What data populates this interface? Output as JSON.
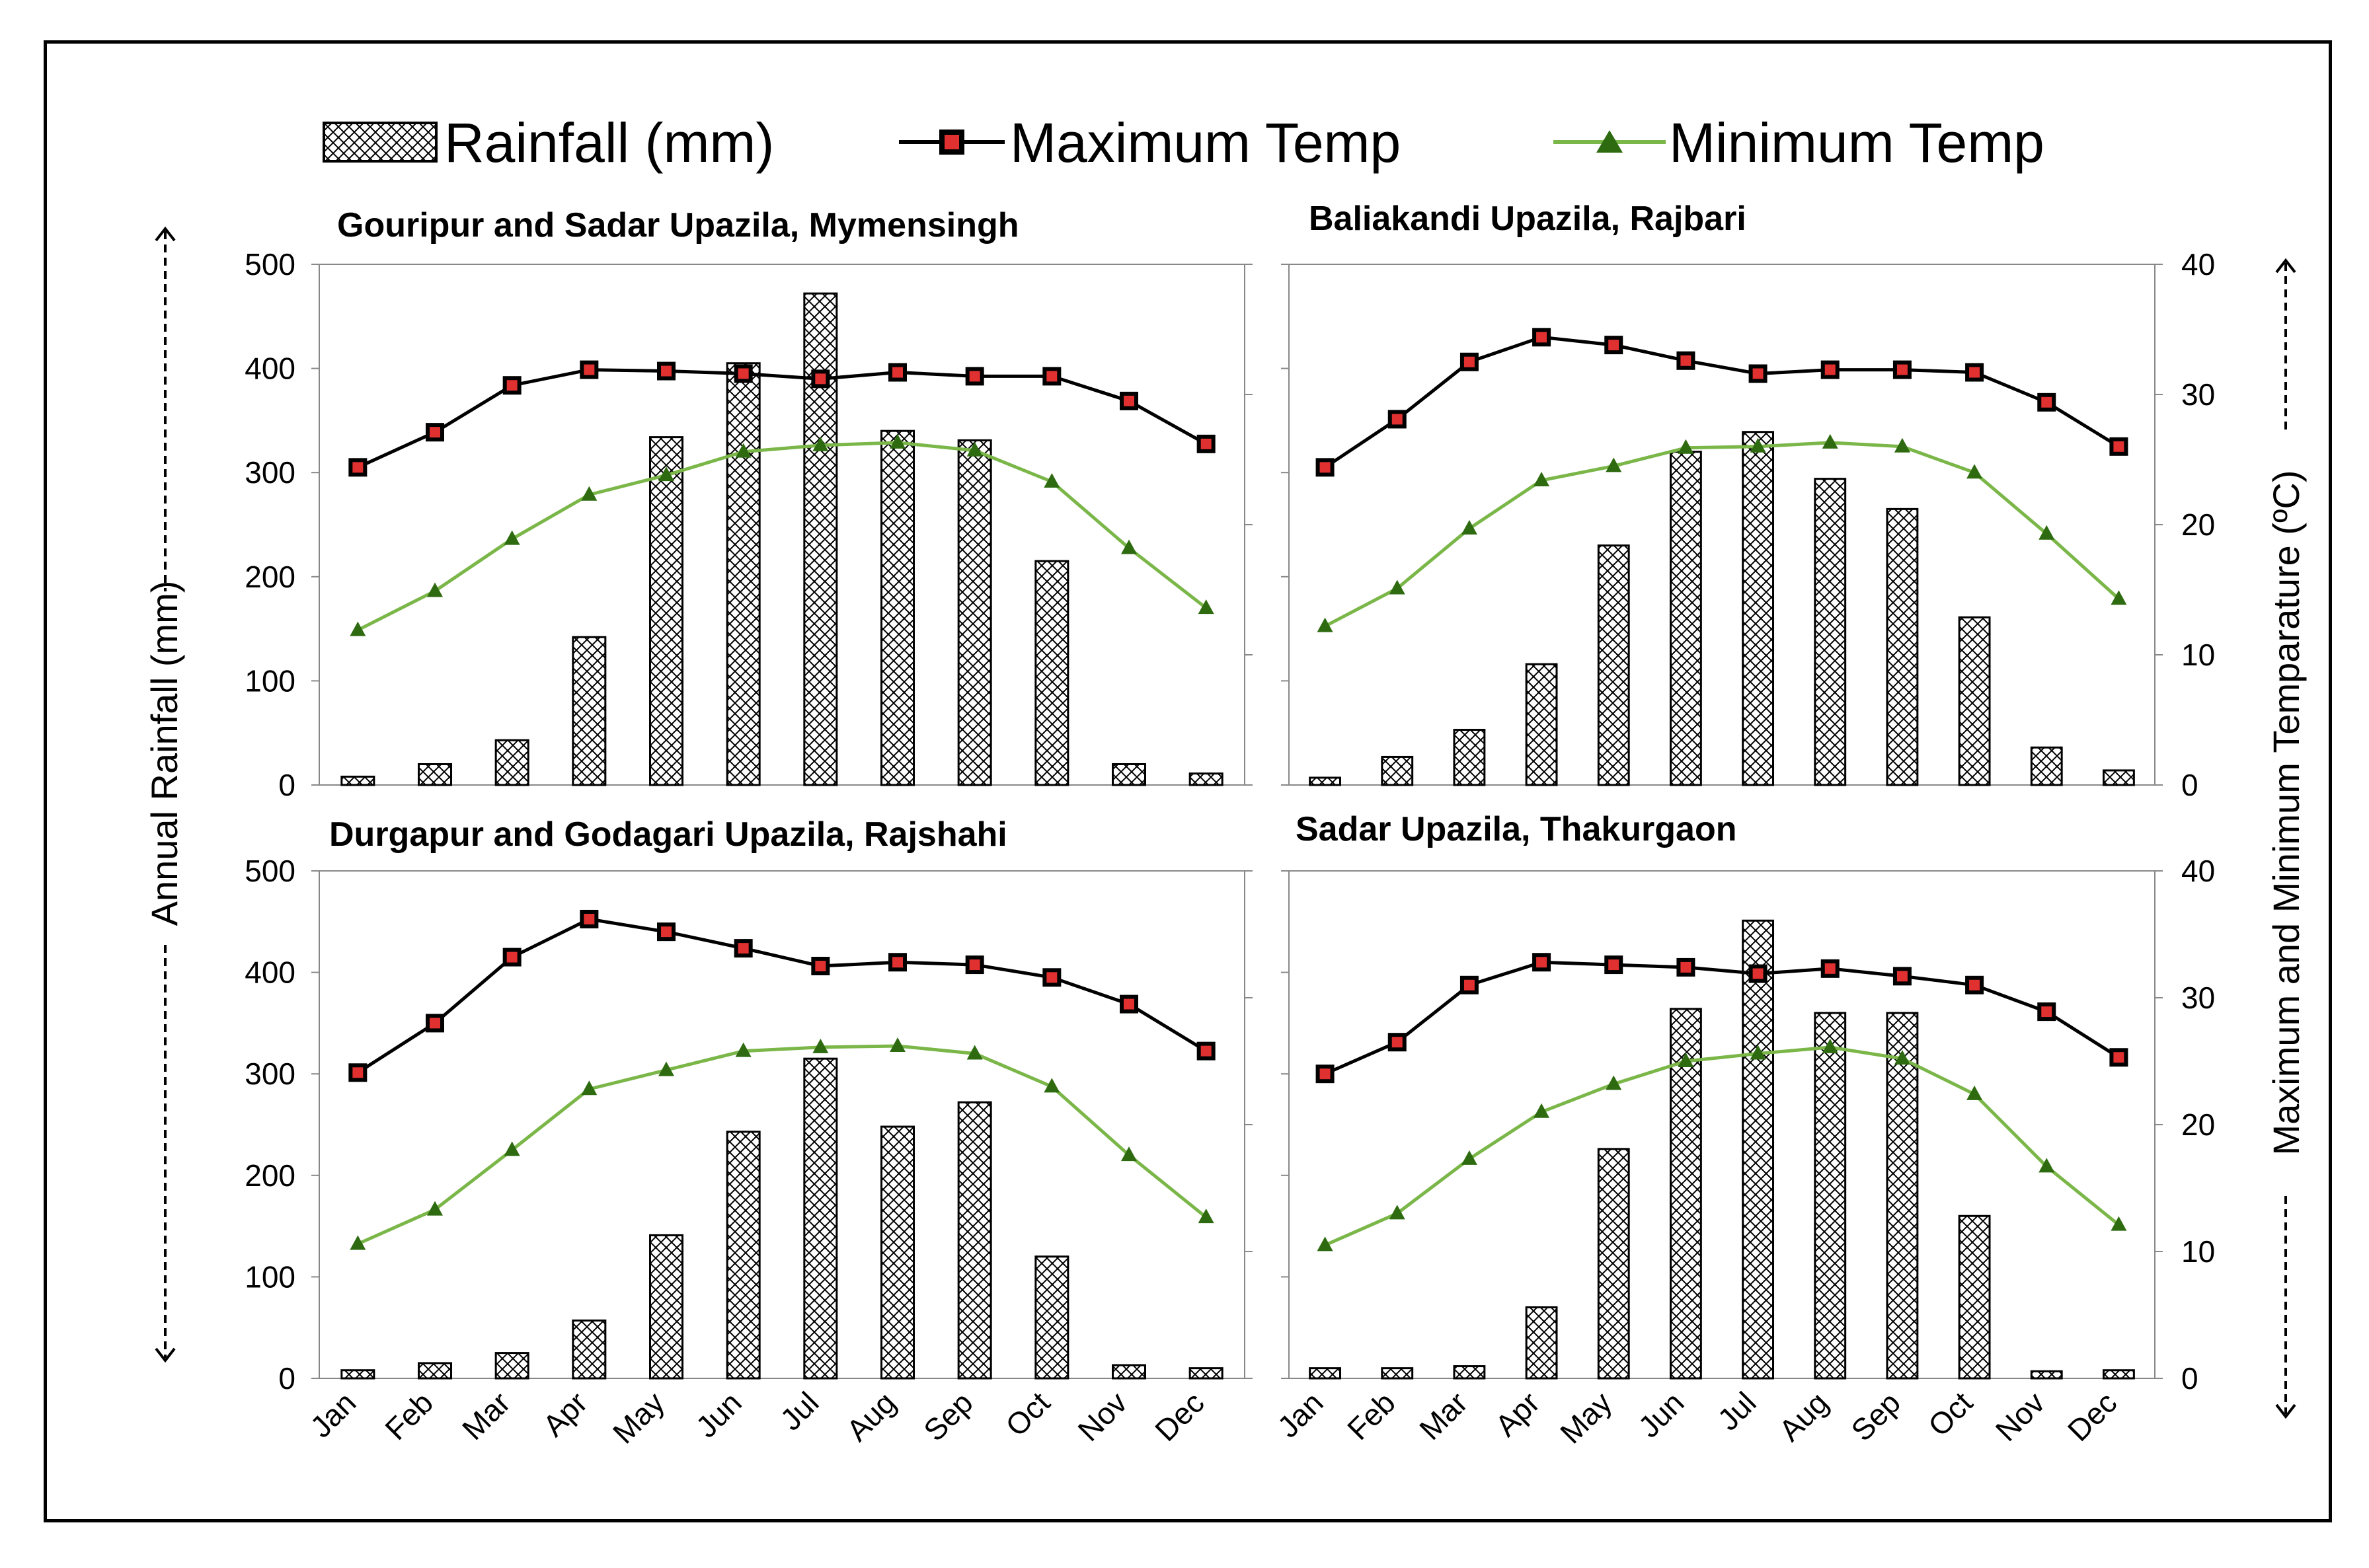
{
  "legend": {
    "rainfall": "Rainfall (mm)",
    "max_temp": "Maximum Temp",
    "min_temp": "Minimum Temp"
  },
  "axes": {
    "left_label": "Annual Rainfall (mm)",
    "right_label": "Maximum and Minimum Temparature (ºC)"
  },
  "colors": {
    "max_line": "#000000",
    "max_marker_fill": "#e03030",
    "min_line": "#7ab648",
    "min_marker_fill": "#2e6b10",
    "bar_stroke": "#000000"
  },
  "chart_data": [
    {
      "type": "bar",
      "title": "Gouripur and Sadar Upazila, Mymensingh",
      "categories": [
        "Jan",
        "Feb",
        "Mar",
        "Apr",
        "May",
        "Jun",
        "Jul",
        "Aug",
        "Sep",
        "Oct",
        "Nov",
        "Dec"
      ],
      "series": [
        {
          "name": "Rainfall (mm)",
          "type": "bar",
          "axis": "left",
          "values": [
            8,
            20,
            43,
            142,
            334,
            405,
            472,
            340,
            331,
            215,
            20,
            11
          ]
        },
        {
          "name": "Maximum Temp",
          "type": "line",
          "axis": "right",
          "values": [
            24.4,
            27.1,
            30.7,
            31.9,
            31.8,
            31.6,
            31.2,
            31.7,
            31.4,
            31.4,
            29.5,
            26.2
          ]
        },
        {
          "name": "Minimum Temp",
          "type": "line",
          "axis": "right",
          "values": [
            11.9,
            14.9,
            18.9,
            22.3,
            23.8,
            25.6,
            26.1,
            26.3,
            25.7,
            23.3,
            18.2,
            13.6
          ]
        }
      ],
      "ylabel": "Annual Rainfall (mm)",
      "ylim": [
        0,
        500
      ],
      "y_ticks": [
        0,
        100,
        200,
        300,
        400,
        500
      ],
      "y2lim": [
        0,
        40
      ],
      "y2_ticks": [
        0,
        10,
        20,
        30,
        40
      ],
      "y_ticks_shown": true,
      "y2_ticks_shown": false
    },
    {
      "type": "bar",
      "title": "Baliakandi Upazila, Rajbari",
      "categories": [
        "Jan",
        "Feb",
        "Mar",
        "Apr",
        "May",
        "Jun",
        "Jul",
        "Aug",
        "Sep",
        "Oct",
        "Nov",
        "Dec"
      ],
      "series": [
        {
          "name": "Rainfall (mm)",
          "type": "bar",
          "axis": "left",
          "values": [
            7,
            27,
            53,
            116,
            230,
            320,
            339,
            294,
            265,
            161,
            36,
            14
          ]
        },
        {
          "name": "Maximum Temp",
          "type": "line",
          "axis": "right",
          "values": [
            24.4,
            28.1,
            32.5,
            34.4,
            33.8,
            32.6,
            31.6,
            31.9,
            31.9,
            31.7,
            29.4,
            26.0
          ]
        },
        {
          "name": "Minimum Temp",
          "type": "line",
          "axis": "right",
          "values": [
            12.2,
            15.1,
            19.7,
            23.4,
            24.5,
            25.9,
            26.0,
            26.3,
            26.0,
            24.0,
            19.3,
            14.3
          ]
        }
      ],
      "ylabel": "Maximum and Minimum Temparature (ºC)",
      "ylim": [
        0,
        500
      ],
      "y_ticks": [
        0,
        100,
        200,
        300,
        400,
        500
      ],
      "y2lim": [
        0,
        40
      ],
      "y2_ticks": [
        0,
        10,
        20,
        30,
        40
      ],
      "y_ticks_shown": false,
      "y2_ticks_shown": true
    },
    {
      "type": "bar",
      "title": "Durgapur and Godagari Upazila, Rajshahi",
      "categories": [
        "Jan",
        "Feb",
        "Mar",
        "Apr",
        "May",
        "Jun",
        "Jul",
        "Aug",
        "Sep",
        "Oct",
        "Nov",
        "Dec"
      ],
      "series": [
        {
          "name": "Rainfall (mm)",
          "type": "bar",
          "axis": "left",
          "values": [
            8,
            15,
            25,
            57,
            141,
            243,
            315,
            248,
            272,
            120,
            13,
            10
          ]
        },
        {
          "name": "Maximum Temp",
          "type": "line",
          "axis": "right",
          "values": [
            24.1,
            28.0,
            33.2,
            36.2,
            35.2,
            33.9,
            32.5,
            32.8,
            32.6,
            31.6,
            29.5,
            25.8
          ]
        },
        {
          "name": "Minimum Temp",
          "type": "line",
          "axis": "right",
          "values": [
            10.6,
            13.3,
            18.0,
            22.8,
            24.3,
            25.8,
            26.1,
            26.2,
            25.6,
            23.0,
            17.6,
            12.7
          ]
        }
      ],
      "ylabel": "Annual Rainfall (mm)",
      "ylim": [
        0,
        500
      ],
      "y_ticks": [
        0,
        100,
        200,
        300,
        400,
        500
      ],
      "y2lim": [
        0,
        40
      ],
      "y2_ticks": [
        0,
        10,
        20,
        30,
        40
      ],
      "y_ticks_shown": true,
      "y2_ticks_shown": false
    },
    {
      "type": "bar",
      "title": "Sadar Upazila, Thakurgaon",
      "categories": [
        "Jan",
        "Feb",
        "Mar",
        "Apr",
        "May",
        "Jun",
        "Jul",
        "Aug",
        "Sep",
        "Oct",
        "Nov",
        "Dec"
      ],
      "series": [
        {
          "name": "Rainfall (mm)",
          "type": "bar",
          "axis": "left",
          "values": [
            10,
            10,
            12,
            70,
            226,
            364,
            451,
            360,
            360,
            160,
            7,
            8
          ]
        },
        {
          "name": "Maximum Temp",
          "type": "line",
          "axis": "right",
          "values": [
            24.0,
            26.5,
            31.0,
            32.8,
            32.6,
            32.4,
            31.9,
            32.3,
            31.7,
            31.0,
            28.9,
            25.3
          ]
        },
        {
          "name": "Minimum Temp",
          "type": "line",
          "axis": "right",
          "values": [
            10.5,
            13.0,
            17.3,
            21.0,
            23.2,
            25.0,
            25.6,
            26.1,
            25.2,
            22.4,
            16.7,
            12.1
          ]
        }
      ],
      "ylabel": "Maximum and Minimum Temparature (ºC)",
      "ylim": [
        0,
        500
      ],
      "y_ticks": [
        0,
        100,
        200,
        300,
        400,
        500
      ],
      "y2lim": [
        0,
        40
      ],
      "y2_ticks": [
        0,
        10,
        20,
        30,
        40
      ],
      "y_ticks_shown": false,
      "y2_ticks_shown": true
    }
  ]
}
